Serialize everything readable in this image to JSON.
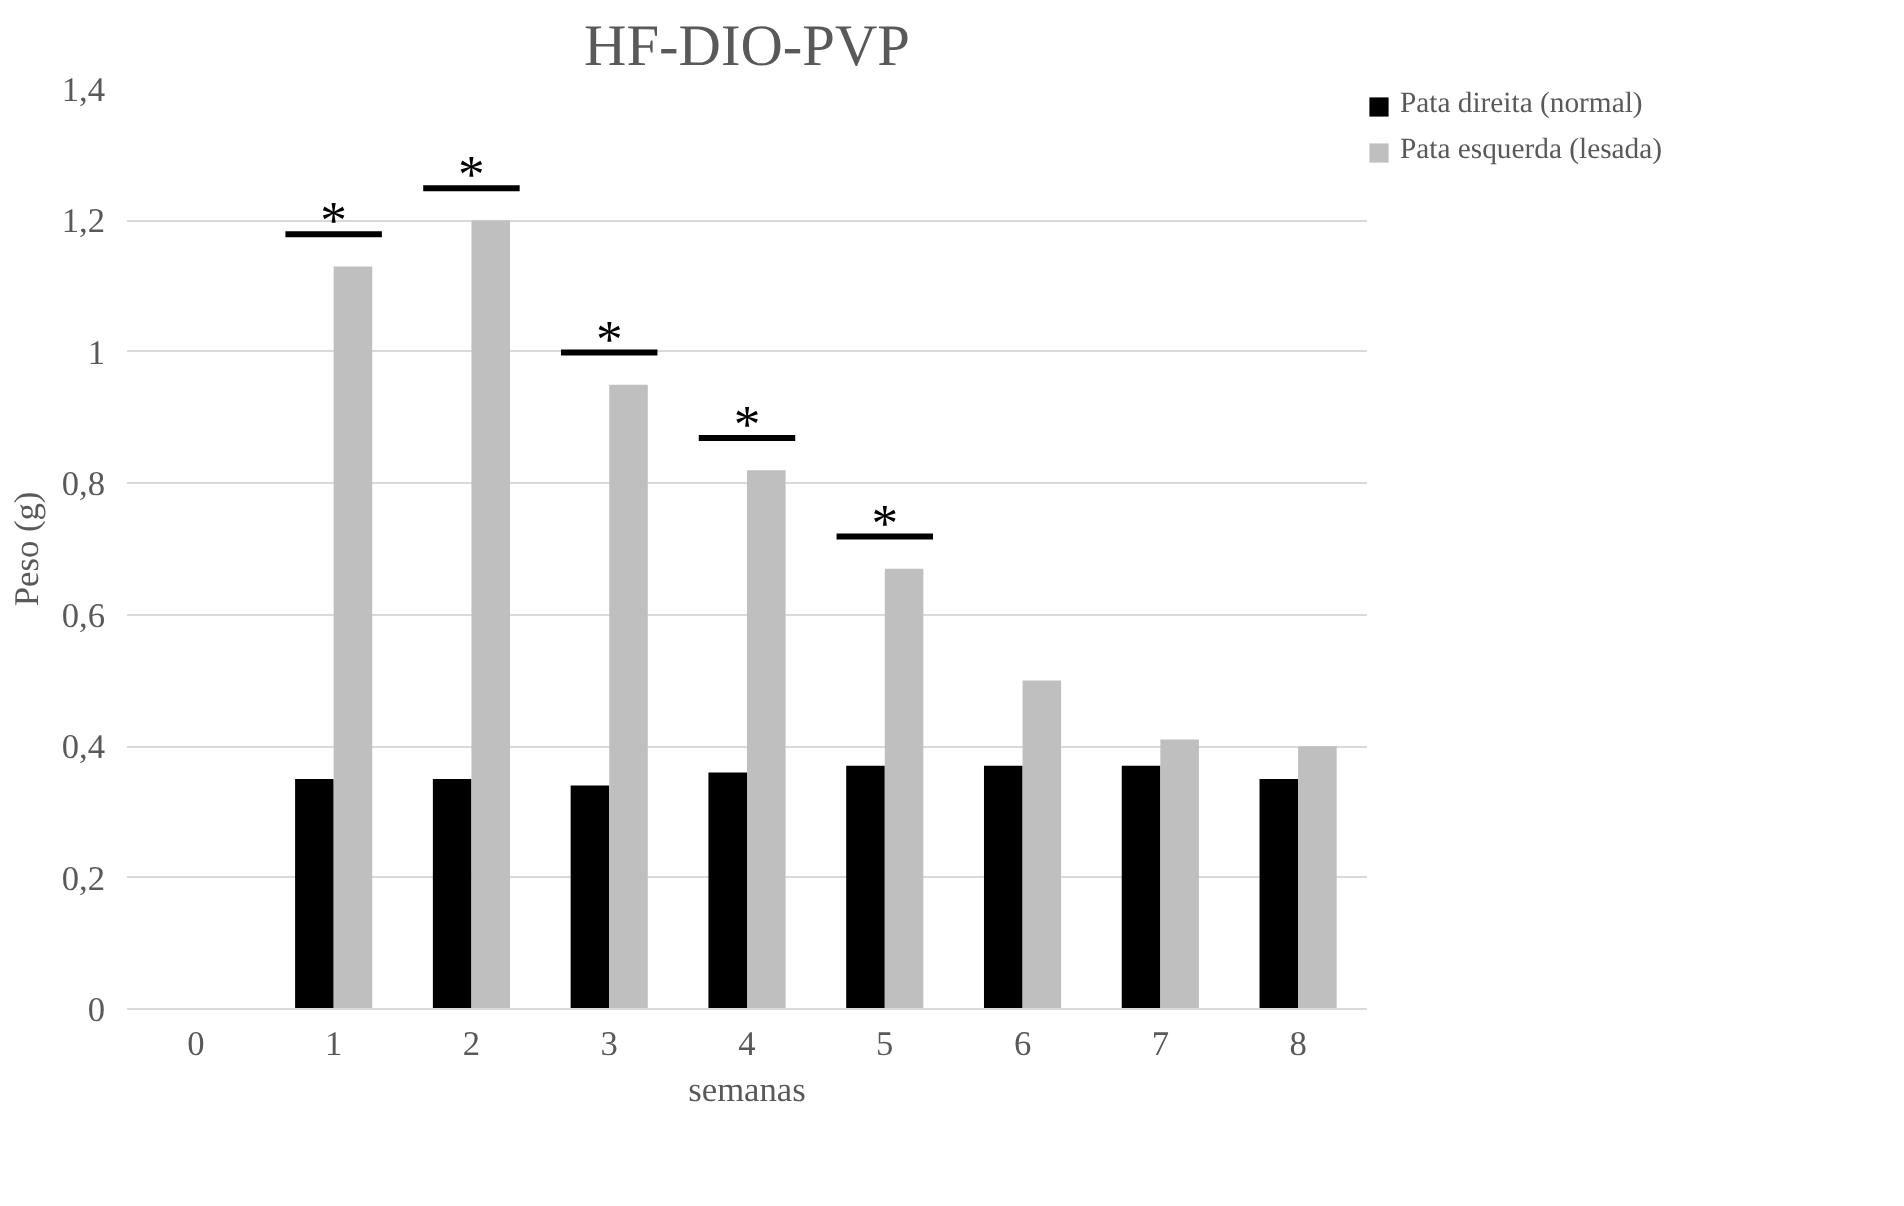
{
  "chart_data": {
    "type": "bar",
    "title": "HF-DIO-PVP",
    "xlabel": "semanas",
    "ylabel": "Peso (g)",
    "categories": [
      "0",
      "1",
      "2",
      "3",
      "4",
      "5",
      "6",
      "7",
      "8"
    ],
    "series": [
      {
        "name": "Pata direita (normal)",
        "color": "#000000",
        "values": [
          null,
          0.35,
          0.35,
          0.34,
          0.36,
          0.37,
          0.37,
          0.37,
          0.35
        ]
      },
      {
        "name": "Pata esquerda (lesada)",
        "color": "#bfbfbf",
        "values": [
          null,
          1.13,
          1.2,
          0.95,
          0.82,
          0.67,
          0.5,
          0.41,
          0.4
        ]
      }
    ],
    "ylim": [
      0,
      1.4
    ],
    "yticks": [
      0,
      {
        "value": 0.2,
        "label": "0,2"
      },
      {
        "value": 0.4,
        "label": "0,4"
      },
      {
        "value": 0.6,
        "label": "0,6"
      },
      {
        "value": 0.8,
        "label": "0,8"
      },
      1,
      {
        "value": 1.2,
        "label": "1,2"
      },
      {
        "value": 1.4,
        "label": "1,4"
      }
    ],
    "grid": "y",
    "legend": "right",
    "annotations": [
      "*",
      "*",
      "*",
      "*",
      "*"
    ]
  }
}
